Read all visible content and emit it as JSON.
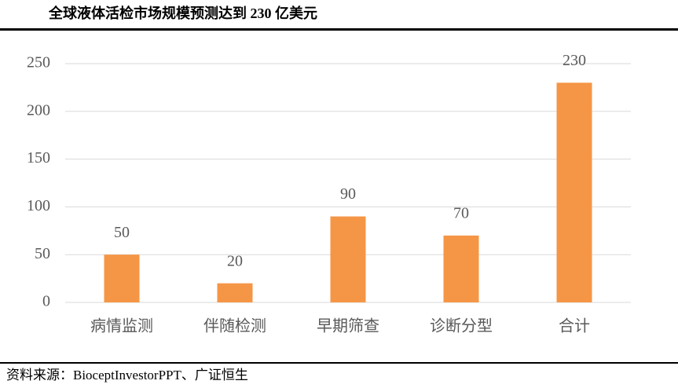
{
  "chart_data": {
    "type": "bar",
    "title": "全球液体活检市场规模预测达到 230 亿美元",
    "categories": [
      "病情监测",
      "伴随检测",
      "早期筛查",
      "诊断分型",
      "合计"
    ],
    "values": [
      50,
      20,
      90,
      70,
      230
    ],
    "color": "#f59646",
    "ylim": [
      0,
      250
    ],
    "yticks": [
      0,
      50,
      100,
      150,
      200,
      250
    ],
    "grid": true,
    "source": "资料来源：BioceptInvestorPPT、广证恒生"
  }
}
